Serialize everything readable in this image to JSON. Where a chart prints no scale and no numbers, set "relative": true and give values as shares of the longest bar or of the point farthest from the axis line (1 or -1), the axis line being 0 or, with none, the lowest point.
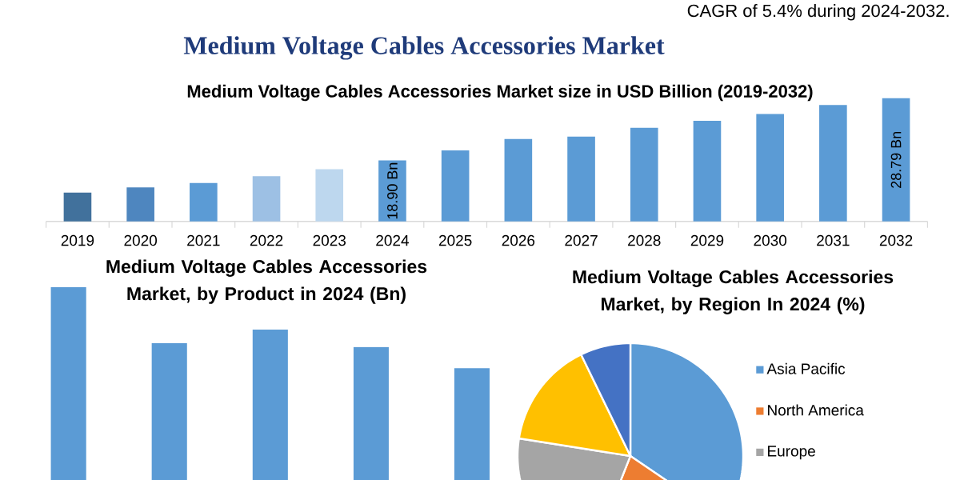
{
  "chart_data": [
    {
      "type": "bar",
      "title": "Medium Voltage Cables Accessories Market",
      "subtitle": "Medium Voltage Cables Accessories Market size in USD Billion (2019-2032)",
      "annotations": [
        "CAGR of 5.4% during 2024-2032."
      ],
      "categories": [
        "2019",
        "2020",
        "2021",
        "2022",
        "2023",
        "2024",
        "2025",
        "2026",
        "2027",
        "2028",
        "2029",
        "2030",
        "2031",
        "2032"
      ],
      "values": [
        13.8,
        14.6,
        15.3,
        16.4,
        17.5,
        18.9,
        20.5,
        22.3,
        22.7,
        24.1,
        25.2,
        26.3,
        27.7,
        28.79
      ],
      "colors": [
        "#41719c",
        "#4e86bf",
        "#5b9bd5",
        "#9dc0e4",
        "#bdd7ee",
        "#5b9bd5",
        "#5b9bd5",
        "#5b9bd5",
        "#5b9bd5",
        "#5b9bd5",
        "#5b9bd5",
        "#5b9bd5",
        "#5b9bd5",
        "#5b9bd5"
      ],
      "value_labels": [
        null,
        null,
        null,
        null,
        null,
        "18.90 Bn",
        null,
        null,
        null,
        null,
        null,
        null,
        null,
        "28.79 Bn"
      ],
      "ylim": [
        9.2,
        28.79
      ],
      "tick_labels": "x"
    },
    {
      "type": "bar",
      "title": "Medium Voltage Cables Accessories Market, by Product in 2024 (Bn)",
      "categories": [
        null,
        null,
        null,
        null,
        null
      ],
      "values": [
        1,
        0.71,
        0.78,
        0.69,
        0.58
      ],
      "color": "#5b9bd5",
      "relative": true,
      "tick_labels": false
    },
    {
      "type": "pie",
      "title": "Medium Voltage Cables Accessories Market, by Region In 2024 (%)",
      "categories": [
        "Asia Pacific",
        "North America",
        "Europe",
        null,
        null
      ],
      "values": [
        34.5,
        21.5,
        21.5,
        15.3,
        7.2
      ],
      "colors": [
        "#5b9bd5",
        "#ed7d31",
        "#a5a5a5",
        "#ffc000",
        "#4472c4"
      ],
      "legend": "right"
    }
  ]
}
